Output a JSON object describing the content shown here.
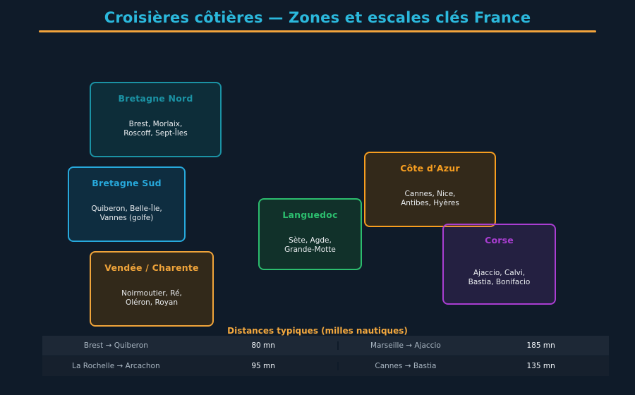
{
  "header": {
    "title": "Croisières côtières — Zones et escales clés France",
    "title_color": "#2bb8dc",
    "accent_color": "#f2a43c"
  },
  "zones": [
    {
      "title": "Bretagne Nord",
      "cities_line1": "Brest, Morlaix,",
      "cities_line2": "Roscoff, Sept-Îles",
      "color": "#1b92a4",
      "fill": "#0d2d39"
    },
    {
      "title": "Bretagne Sud",
      "cities_line1": "Quiberon, Belle-Île,",
      "cities_line2": "Vannes (golfe)",
      "color": "#27a9dc",
      "fill": "#0e2d40"
    },
    {
      "title": "Vendée / Charente",
      "cities_line1": "Noirmoutier, Ré,",
      "cities_line2": "Oléron, Royan",
      "color": "#f0a43a",
      "fill": "#32291a"
    },
    {
      "title": "Languedoc",
      "cities_line1": "Sète, Agde,",
      "cities_line2": "Grande-Motte",
      "color": "#2cbd6e",
      "fill": "#11312a"
    },
    {
      "title": "Côte d’Azur",
      "cities_line1": "Cannes, Nice,",
      "cities_line2": "Antibes, Hyères",
      "color": "#f79e20",
      "fill": "#33291a"
    },
    {
      "title": "Corse",
      "cities_line1": "Ajaccio, Calvi,",
      "cities_line2": "Bastia, Bonifacio",
      "color": "#aa3ed2",
      "fill": "rgba(170,64,210,0.14)"
    }
  ],
  "table": {
    "title": "Distances typiques (milles nautiques)",
    "title_color": "#f3a83e",
    "rows": [
      {
        "route1": "Brest → Quiberon",
        "dist1": "80 mn",
        "route2": "Marseille → Ajaccio",
        "dist2": "185 mn"
      },
      {
        "route1": "La Rochelle → Arcachon",
        "dist1": "95 mn",
        "route2": "Cannes → Bastia",
        "dist2": "135 mn"
      }
    ]
  }
}
